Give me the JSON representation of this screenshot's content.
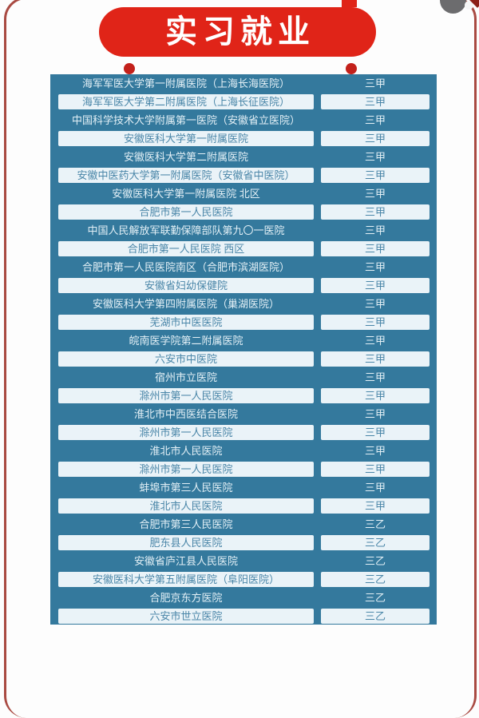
{
  "banner": {
    "label": "实习就业",
    "bg_color": "#e02418",
    "text_color": "#ffffff"
  },
  "decor": {
    "frame_color": "#a94a42",
    "pin_dot_color": "#c3211b",
    "top_tab_color": "#e02418",
    "corner_circle_color": "#6c6c6e"
  },
  "table": {
    "bg_color": "#34799d",
    "alt_box_color": "#eaf3f8",
    "teal_row_text_color": "#e3f0f6",
    "alt_row_text_color": "#4a86a8",
    "columns": [
      "hospital_name",
      "grade"
    ],
    "rows": [
      {
        "name": "海军军医大学第一附属医院（上海长海医院）",
        "grade": "三甲"
      },
      {
        "name": "海军军医大学第二附属医院（上海长征医院）",
        "grade": "三甲"
      },
      {
        "name": "中国科学技术大学附属第一医院（安徽省立医院）",
        "grade": "三甲"
      },
      {
        "name": "安徽医科大学第一附属医院",
        "grade": "三甲"
      },
      {
        "name": "安徽医科大学第二附属医院",
        "grade": "三甲"
      },
      {
        "name": "安徽中医药大学第一附属医院（安徽省中医院）",
        "grade": "三甲"
      },
      {
        "name": "安徽医科大学第一附属医院 北区",
        "grade": "三甲"
      },
      {
        "name": "合肥市第一人民医院",
        "grade": "三甲"
      },
      {
        "name": "中国人民解放军联勤保障部队第九〇一医院",
        "grade": "三甲"
      },
      {
        "name": "合肥市第一人民医院 西区",
        "grade": "三甲"
      },
      {
        "name": "合肥市第一人民医院南区（合肥市滨湖医院）",
        "grade": "三甲"
      },
      {
        "name": "安徽省妇幼保健院",
        "grade": "三甲"
      },
      {
        "name": "安徽医科大学第四附属医院（巢湖医院）",
        "grade": "三甲"
      },
      {
        "name": "芜湖市中医医院",
        "grade": "三甲"
      },
      {
        "name": "皖南医学院第二附属医院",
        "grade": "三甲"
      },
      {
        "name": "六安市中医院",
        "grade": "三甲"
      },
      {
        "name": "宿州市立医院",
        "grade": "三甲"
      },
      {
        "name": "滁州市第一人民医院",
        "grade": "三甲"
      },
      {
        "name": "淮北市中西医结合医院",
        "grade": "三甲"
      },
      {
        "name": "滁州市第一人民医院",
        "grade": "三甲"
      },
      {
        "name": "淮北市人民医院",
        "grade": "三甲"
      },
      {
        "name": "滁州市第一人民医院",
        "grade": "三甲"
      },
      {
        "name": "蚌埠市第三人民医院",
        "grade": "三甲"
      },
      {
        "name": "淮北市人民医院",
        "grade": "三甲"
      },
      {
        "name": "合肥市第三人民医院",
        "grade": "三乙"
      },
      {
        "name": "肥东县人民医院",
        "grade": "三乙"
      },
      {
        "name": "安徽省庐江县人民医院",
        "grade": "三乙"
      },
      {
        "name": "安徽医科大学第五附属医院（阜阳医院）",
        "grade": "三乙"
      },
      {
        "name": "合肥京东方医院",
        "grade": "三乙"
      },
      {
        "name": "六安市世立医院",
        "grade": "三乙"
      }
    ]
  }
}
